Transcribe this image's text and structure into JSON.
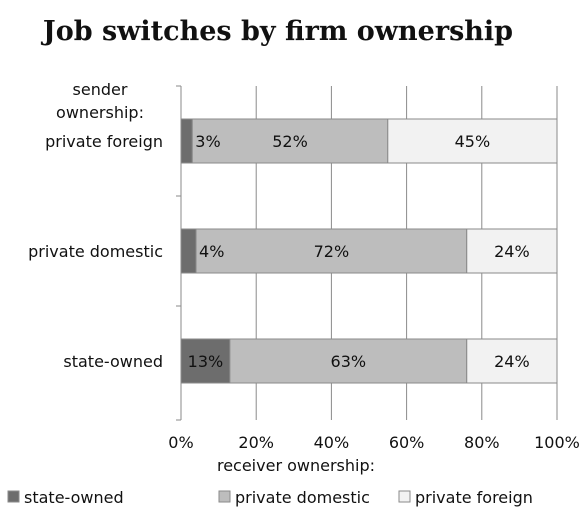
{
  "chart_data": {
    "type": "bar",
    "orientation": "horizontal",
    "stacked": true,
    "title": "Job switches by firm ownership",
    "ylabel": "sender ownership:",
    "xlabel": "receiver ownership:",
    "categories": [
      "private foreign",
      "private domestic",
      "state-owned"
    ],
    "xlim": [
      0,
      100
    ],
    "xticks": [
      "0%",
      "20%",
      "40%",
      "60%",
      "80%",
      "100%"
    ],
    "grid": true,
    "legend": "bottom",
    "series": [
      {
        "name": "state-owned",
        "color": "#6d6d6d",
        "values": [
          3,
          4,
          13
        ],
        "labels": [
          "3%",
          "4%",
          "13%"
        ]
      },
      {
        "name": "private domestic",
        "color": "#bdbdbd",
        "values": [
          52,
          72,
          63
        ],
        "labels": [
          "52%",
          "72%",
          "63%"
        ]
      },
      {
        "name": "private foreign",
        "color": "#f2f2f2",
        "values": [
          45,
          24,
          24
        ],
        "labels": [
          "45%",
          "24%",
          "24%"
        ]
      }
    ]
  }
}
